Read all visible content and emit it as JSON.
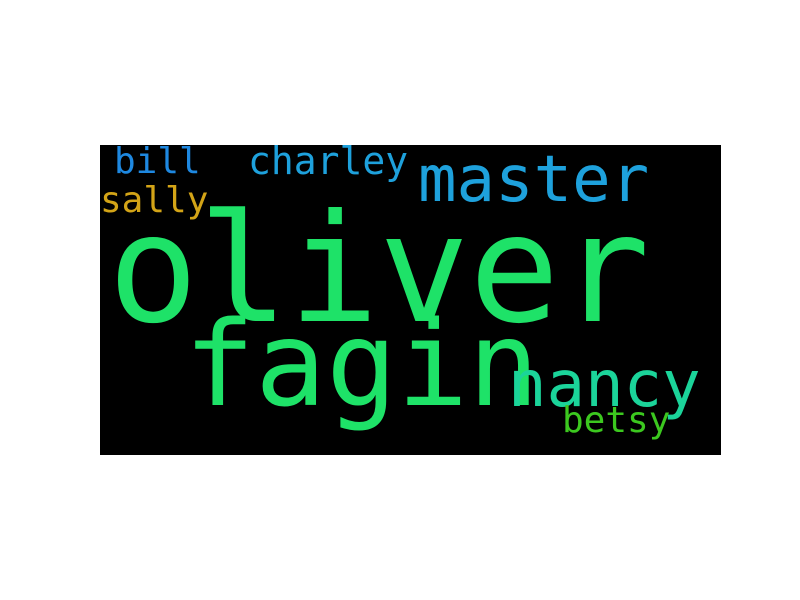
{
  "colors": {
    "background": "#000000",
    "page": "#ffffff"
  },
  "words": [
    {
      "text": "oliver",
      "color": "#1ee268"
    },
    {
      "text": "fagin",
      "color": "#1ee268"
    },
    {
      "text": "master",
      "color": "#1ea1dc"
    },
    {
      "text": "nancy",
      "color": "#1bd49a"
    },
    {
      "text": "charley",
      "color": "#1ea1dc"
    },
    {
      "text": "bill",
      "color": "#1e88e0"
    },
    {
      "text": "sally",
      "color": "#d3a417"
    },
    {
      "text": "betsy",
      "color": "#3cc81f"
    }
  ]
}
